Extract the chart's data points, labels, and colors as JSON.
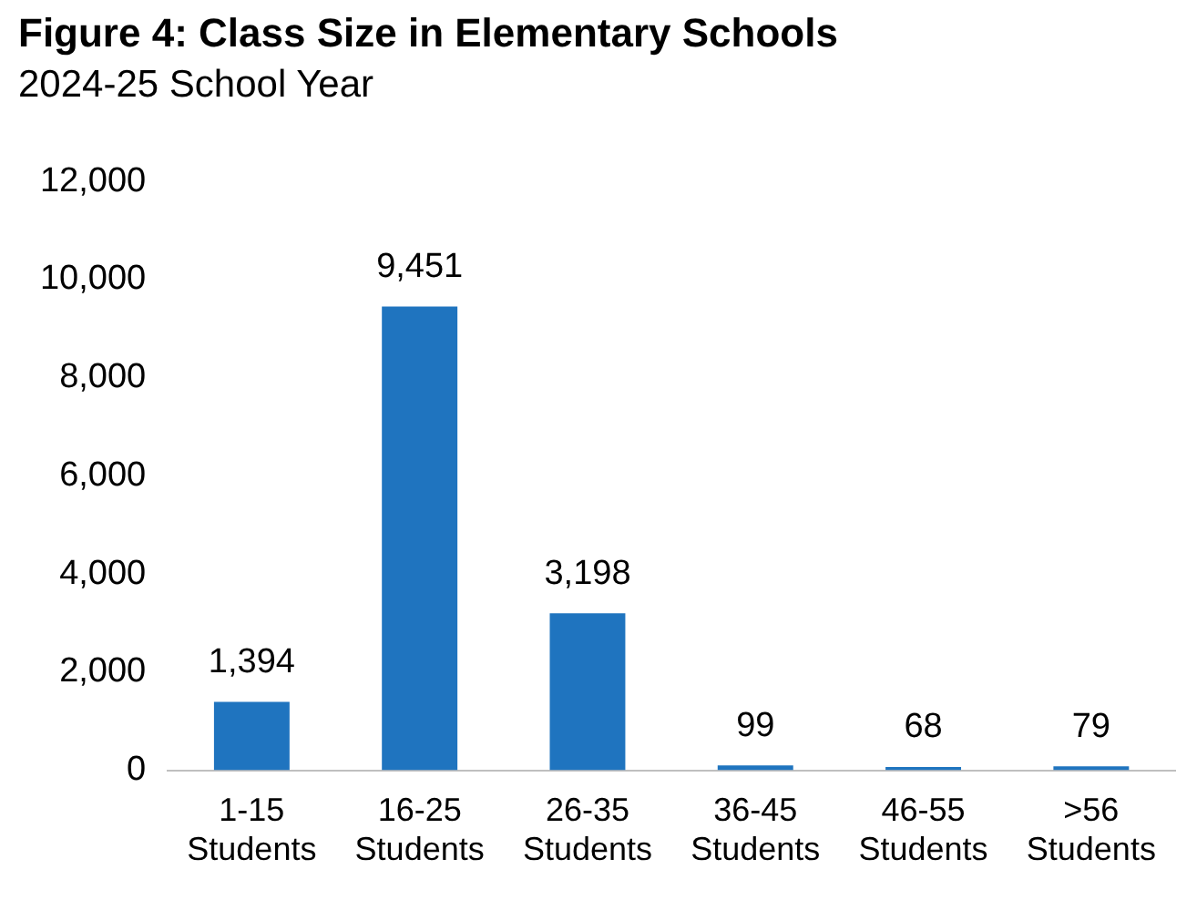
{
  "chart_data": {
    "type": "bar",
    "title": "Figure 4: Class Size in Elementary Schools",
    "subtitle": "2024-25 School Year",
    "categories": [
      "1-15 Students",
      "16-25 Students",
      "26-35 Students",
      "36-45 Students",
      "46-55 Students",
      ">56 Students"
    ],
    "values": [
      1394,
      9451,
      3198,
      99,
      68,
      79
    ],
    "value_labels": [
      "1,394",
      "9,451",
      "3,198",
      "99",
      "68",
      "79"
    ],
    "color": "#1f74bf",
    "ylim": [
      0,
      12000
    ],
    "yticks": [
      0,
      {
        "value": 2000,
        "label": "2,000"
      },
      {
        "value": 4000,
        "label": "4,000"
      },
      {
        "value": 6000,
        "label": "6,000"
      },
      {
        "value": 8000,
        "label": "8,000"
      },
      {
        "value": 10000,
        "label": "10,000"
      },
      {
        "value": 12000,
        "label": "12,000"
      }
    ],
    "grid": false,
    "legend": false
  }
}
